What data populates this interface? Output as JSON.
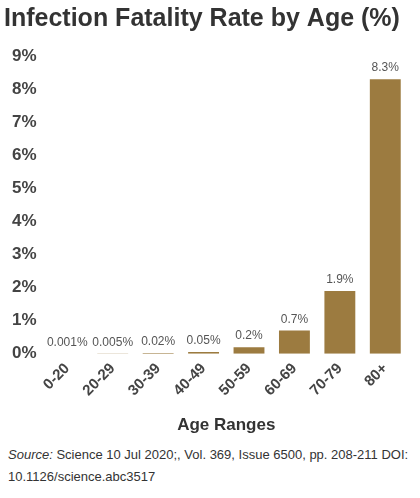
{
  "chart_data": {
    "type": "bar",
    "title": "Infection Fatality Rate by Age (%)",
    "x_label": "Age Ranges",
    "source": "Source: Science 10 Jul 2020;, Vol. 369, Issue 6500, pp. 208-211 DOI: 10.1126/science.abc3517",
    "categories": [
      "0-20",
      "20-29",
      "30-39",
      "40-49",
      "50-59",
      "60-69",
      "70-79",
      "80+"
    ],
    "values": [
      0.001,
      0.005,
      0.02,
      0.05,
      0.2,
      0.7,
      1.9,
      8.3
    ],
    "value_labels": [
      "0.001%",
      "0.005%",
      "0.02%",
      "0.05%",
      "0.2%",
      "0.7%",
      "1.9%",
      "8.3%"
    ],
    "color": "#9c7b40",
    "ylim": [
      0,
      9
    ],
    "yticks": [
      {
        "value": 0,
        "label": "0%"
      },
      {
        "value": 1,
        "label": "1%"
      },
      {
        "value": 2,
        "label": "2%"
      },
      {
        "value": 3,
        "label": "3%"
      },
      {
        "value": 4,
        "label": "4%"
      },
      {
        "value": 5,
        "label": "5%"
      },
      {
        "value": 6,
        "label": "6%"
      },
      {
        "value": 7,
        "label": "7%"
      },
      {
        "value": 8,
        "label": "8%"
      },
      {
        "value": 9,
        "label": "9%"
      }
    ],
    "grid": false,
    "data_labels": true
  }
}
